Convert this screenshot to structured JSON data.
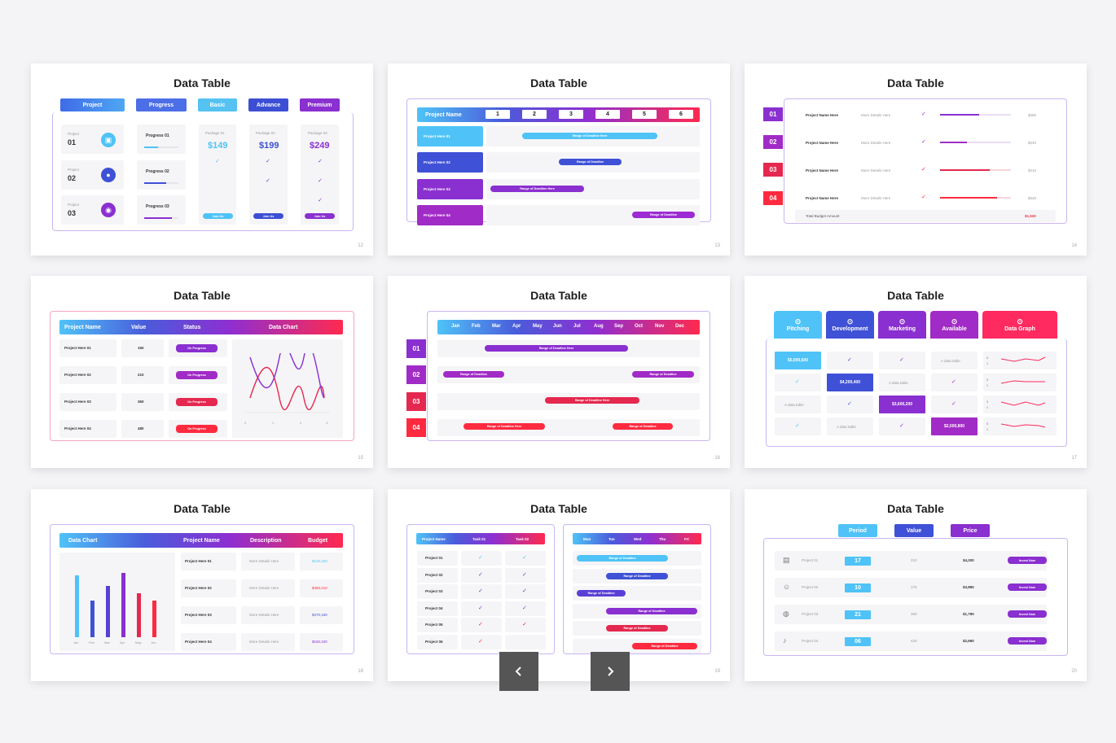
{
  "slides": [
    {
      "title": "Data Table",
      "page": "12"
    },
    {
      "title": "Data Table",
      "page": "13"
    },
    {
      "title": "Data Table",
      "page": "14"
    },
    {
      "title": "Data Table",
      "page": "15"
    },
    {
      "title": "Data Table",
      "page": "16"
    },
    {
      "title": "Data Table",
      "page": "17"
    },
    {
      "title": "Data Table",
      "page": "18"
    },
    {
      "title": "Data Table",
      "page": "19"
    },
    {
      "title": "Data Table",
      "page": "20"
    }
  ],
  "s12": {
    "headers": [
      "Project",
      "Progress",
      "Basic",
      "Advance",
      "Premium"
    ],
    "rows": [
      {
        "label": "Project",
        "num": "01",
        "progress": "Progress 01",
        "fill": 0.4
      },
      {
        "label": "Project",
        "num": "02",
        "progress": "Progress 02",
        "fill": 0.65
      },
      {
        "label": "Project",
        "num": "03",
        "progress": "Progress 03",
        "fill": 0.8
      }
    ],
    "packages": [
      {
        "label": "Package 01",
        "price": "$149",
        "button": "Join Us"
      },
      {
        "label": "Package 02",
        "price": "$199",
        "button": "Join Us"
      },
      {
        "label": "Package 03",
        "price": "$249",
        "button": "Join Us"
      }
    ],
    "colors": [
      "#4a7df0",
      "#5fc4f2",
      "#3f51d6",
      "#8a2fd0"
    ]
  },
  "s13": {
    "header": "Project Name",
    "cols": [
      "1",
      "2",
      "3",
      "4",
      "5",
      "6"
    ],
    "rows": [
      {
        "name": "Project Here 01",
        "task": "Range of Deadline Here"
      },
      {
        "name": "Project Here 02",
        "task": "Range of Deadline"
      },
      {
        "name": "Project Here 03",
        "task": "Range of Deadline Here"
      },
      {
        "name": "Project Here 04",
        "task": "Range of Deadline"
      }
    ]
  },
  "s14": {
    "rows": [
      {
        "num": "01",
        "name": "Project Name Here",
        "detail": "More Details Here",
        "value": "$360",
        "fill": 0.55
      },
      {
        "num": "02",
        "name": "Project Name Here",
        "detail": "More Details Here",
        "value": "$240",
        "fill": 0.38
      },
      {
        "num": "03",
        "name": "Project Name Here",
        "detail": "More Details Here",
        "value": "$410",
        "fill": 0.7
      },
      {
        "num": "04",
        "name": "Project Name Here",
        "detail": "More Details Here",
        "value": "$520",
        "fill": 0.8
      }
    ],
    "total_label": "Total Budget Amount",
    "total_value": "$1,530"
  },
  "s15": {
    "headers": [
      "Project Name",
      "Value",
      "Status",
      "Data Chart"
    ],
    "rows": [
      {
        "name": "Project Here 01",
        "value": "150",
        "status": "On Progress"
      },
      {
        "name": "Project Here 02",
        "value": "210",
        "status": "On Progress"
      },
      {
        "name": "Project Here 03",
        "value": "360",
        "status": "On Progress"
      },
      {
        "name": "Project Here 04",
        "value": "480",
        "status": "On Progress"
      }
    ],
    "axis": [
      "0",
      "1",
      "2",
      "3"
    ]
  },
  "s16": {
    "months": [
      "Jan",
      "Feb",
      "Mar",
      "Apr",
      "May",
      "Jun",
      "Jul",
      "Aug",
      "Sep",
      "Oct",
      "Nov",
      "Dec"
    ],
    "rows": [
      "01",
      "02",
      "03",
      "04"
    ],
    "tasks": [
      {
        "label": "Range of Deadline Here"
      },
      {
        "label": "Range of Deadline"
      },
      {
        "label": "Range of Deadline"
      },
      {
        "label": "Range of Deadline Here"
      },
      {
        "label": "Range of Deadline Here"
      },
      {
        "label": "Range of Deadline"
      }
    ]
  },
  "s17": {
    "headers": [
      "Pitching",
      "Development",
      "Marketing",
      "Available",
      "Data Graph"
    ],
    "values": [
      "$5,000,600",
      "$4,200,400",
      "$3,600,200",
      "$2,000,800"
    ],
    "text": "A data table",
    "axis": [
      "$",
      "0"
    ]
  },
  "s18": {
    "headers": [
      "Data Chart",
      "Project Name",
      "Description",
      "Budget"
    ],
    "months": [
      "Jan",
      "Feb",
      "Mar",
      "Apr",
      "May",
      "Jun"
    ],
    "chart_data": {
      "type": "bar",
      "categories": [
        "Jan",
        "Feb",
        "Mar",
        "Apr",
        "May",
        "Jun"
      ],
      "values": [
        85,
        50,
        70,
        88,
        60,
        50
      ]
    },
    "rows": [
      {
        "name": "Project Here 01",
        "desc": "More Details Here",
        "budget": "$120,420"
      },
      {
        "name": "Project Here 02",
        "desc": "More Details Here",
        "budget": "$360,210"
      },
      {
        "name": "Project Here 03",
        "desc": "More Details Here",
        "budget": "$470,150"
      },
      {
        "name": "Project Here 04",
        "desc": "More Details Here",
        "budget": "$150,340"
      }
    ]
  },
  "s19": {
    "left_headers": [
      "Project Name",
      "Task 01",
      "Task 02"
    ],
    "projects": [
      "Project 01",
      "Project 02",
      "Project 03",
      "Project 04",
      "Project 05",
      "Project 06"
    ],
    "days": [
      "Mon",
      "Tue",
      "Wed",
      "Thu",
      "Fri"
    ],
    "tasks": [
      "Range of Deadline",
      "Range of Deadline",
      "Range of Deadline",
      "Range of Deadline",
      "Range of Deadline",
      "Range of Deadline"
    ]
  },
  "s20": {
    "headers": [
      "Period",
      "Value",
      "Price"
    ],
    "rows": [
      {
        "name": "Project 01",
        "period": "17",
        "value": "210",
        "price": "$4,200",
        "button": "Invest Now"
      },
      {
        "name": "Project 02",
        "period": "10",
        "value": "175",
        "price": "$3,890",
        "button": "Invest Now"
      },
      {
        "name": "Project 03",
        "period": "21",
        "value": "360",
        "price": "$1,790",
        "button": "Invest Now"
      },
      {
        "name": "Project 04",
        "period": "06",
        "value": "420",
        "price": "$2,660",
        "button": "Invest Now"
      }
    ]
  },
  "nav": {
    "prev": "‹",
    "next": "›"
  }
}
